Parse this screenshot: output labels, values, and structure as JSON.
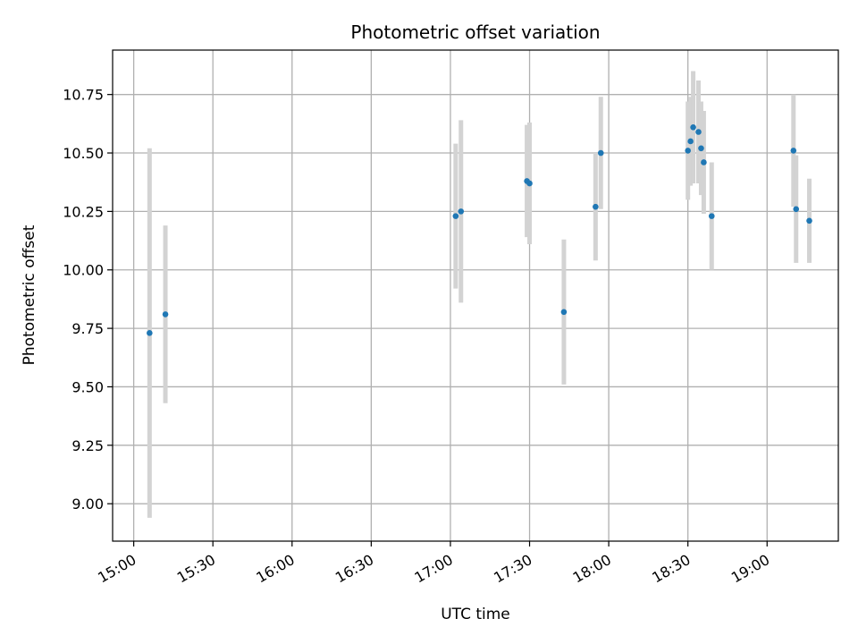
{
  "chart_data": {
    "type": "scatter",
    "title": "Photometric offset variation",
    "xlabel": "UTC time",
    "ylabel": "Photometric offset",
    "xlim": [
      "14:52",
      "19:27"
    ],
    "ylim": [
      8.84,
      10.94
    ],
    "grid": true,
    "x_ticks": [
      "15:00",
      "15:30",
      "16:00",
      "16:30",
      "17:00",
      "17:30",
      "18:00",
      "18:30",
      "19:00"
    ],
    "y_ticks": [
      "9.00",
      "9.25",
      "9.50",
      "9.75",
      "10.00",
      "10.25",
      "10.50",
      "10.75"
    ],
    "colors": {
      "points": "#1f77b4",
      "errorbars": "#d3d3d3",
      "grid": "#b0b0b0"
    },
    "series": [
      {
        "x": [
          "15:06",
          "15:12",
          "17:02",
          "17:04",
          "17:29",
          "17:30",
          "17:43",
          "17:55",
          "17:57",
          "18:30",
          "18:31",
          "18:32",
          "18:34",
          "18:35",
          "18:36",
          "18:39",
          "19:10",
          "19:11",
          "19:16"
        ],
        "y": [
          9.73,
          9.81,
          10.23,
          10.25,
          10.38,
          10.37,
          9.82,
          10.27,
          10.5,
          10.51,
          10.55,
          10.61,
          10.59,
          10.52,
          10.46,
          10.23,
          10.51,
          10.26,
          10.21
        ],
        "yerr": [
          0.79,
          0.38,
          0.31,
          0.39,
          0.24,
          0.26,
          0.31,
          0.23,
          0.24,
          0.21,
          0.19,
          0.24,
          0.22,
          0.2,
          0.22,
          0.23,
          0.24,
          0.23,
          0.18
        ]
      }
    ]
  }
}
